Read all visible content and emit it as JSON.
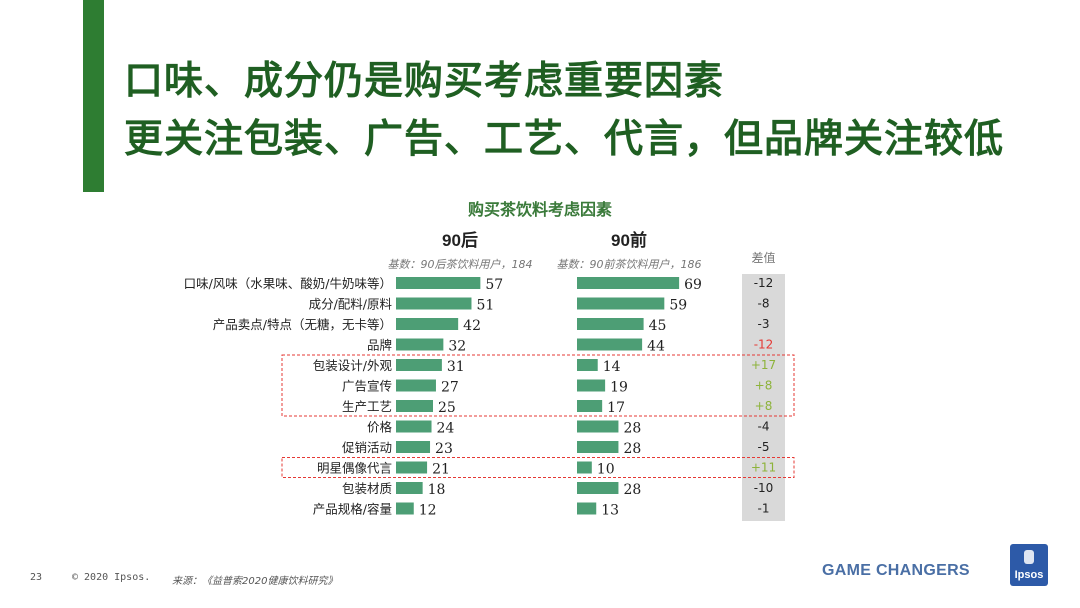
{
  "slide": {
    "title_line1": "口味、成分仍是购买考虑重要因素",
    "title_line2": "更关注包装、广告、工艺、代言，但品牌关注较低"
  },
  "chart_data": {
    "type": "bar",
    "title": "购买茶饮料考虑因素",
    "categories": [
      "口味/风味（水果味、酸奶/牛奶味等）",
      "成分/配料/原料",
      "产品卖点/特点（无糖，无卡等）",
      "品牌",
      "包装设计/外观",
      "广告宣传",
      "生产工艺",
      "价格",
      "促销活动",
      "明星偶像代言",
      "包装材质",
      "产品规格/容量"
    ],
    "series": [
      {
        "name": "90后",
        "base": "基数：90后茶饮料用户，184",
        "values": [
          57,
          51,
          42,
          32,
          31,
          27,
          25,
          24,
          23,
          21,
          18,
          12
        ]
      },
      {
        "name": "90前",
        "base": "基数：90前茶饮料用户，186",
        "values": [
          69,
          59,
          45,
          44,
          14,
          19,
          17,
          28,
          28,
          10,
          28,
          13
        ]
      }
    ],
    "diff_header": "差值",
    "diff": [
      "-12",
      "-8",
      "-3",
      "-12",
      "+17",
      "+8",
      "+8",
      "-4",
      "-5",
      "+11",
      "-10",
      "-1"
    ],
    "highlight_groups": [
      [
        4,
        6
      ],
      [
        9,
        9
      ]
    ],
    "colors": {
      "bar": "#4d9e75",
      "diff_bg": "#d9d9d9",
      "positive": "#8db33a",
      "negative_highlight": "#e53935",
      "highlight_border": "#e53935"
    }
  },
  "footer": {
    "page_number": "23",
    "copyright": "© 2020 Ipsos.",
    "source": "来源：《益普索2020健康饮料研究》",
    "tagline": "GAME CHANGERS",
    "logo_text": "Ipsos"
  }
}
